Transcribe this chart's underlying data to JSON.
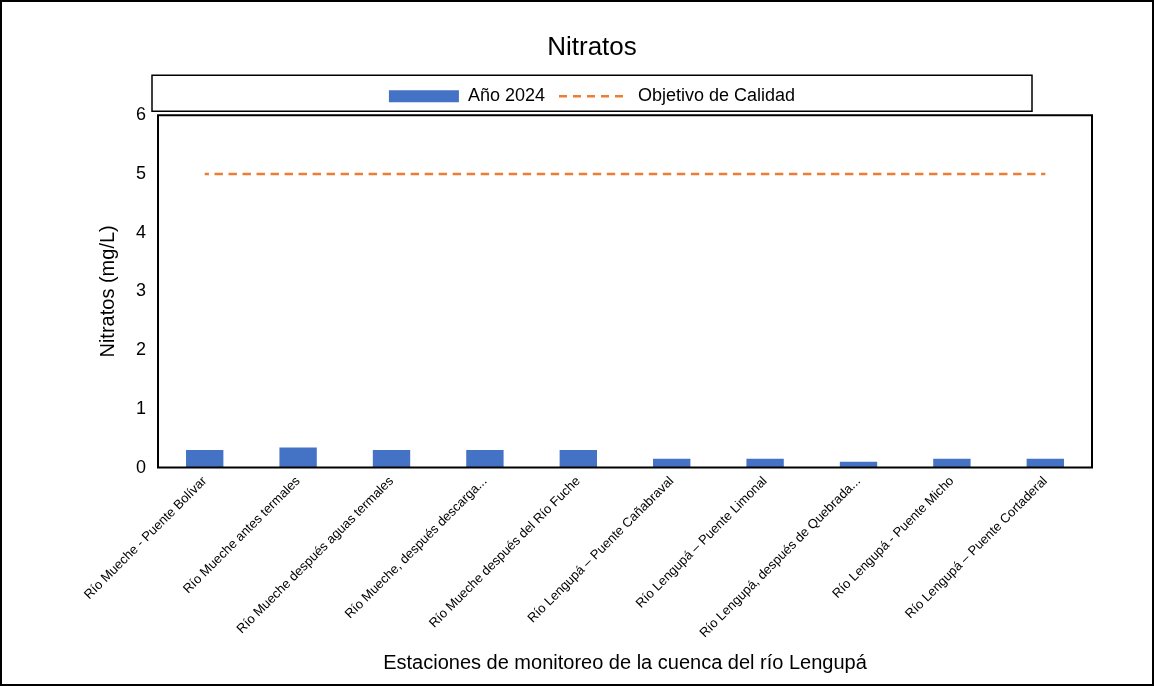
{
  "chart_data": {
    "type": "bar",
    "title": "Nitratos",
    "xlabel": "Estaciones de monitoreo de la cuenca del río Lengupá",
    "ylabel": "Nitratos (mg/L)",
    "categories": [
      "Río Mueche - Puente Bolívar",
      "Río Mueche antes termales",
      "Río Mueche después aguas termales",
      "Río Mueche, después descarga...",
      "Río Mueche después del Río Fuche",
      "Río Lengupá – Puente Cañabraval",
      "Río Lengupá – Puente Limonal",
      "Río Lengupá, después de Quebrada...",
      "Río Lengupá - Puente Micho",
      "Río Lengupá – Puente Cortaderal"
    ],
    "series": [
      {
        "name": "Año 2024",
        "color": "#4472c4",
        "values": [
          0.3,
          0.34,
          0.3,
          0.3,
          0.3,
          0.15,
          0.15,
          0.1,
          0.15,
          0.15
        ]
      },
      {
        "name": "Objetivo de Calidad",
        "type": "line",
        "color": "#ed7d31",
        "line_style": "dashed",
        "marker": "none",
        "values": [
          5,
          5,
          5,
          5,
          5,
          5,
          5,
          5,
          5,
          5
        ]
      }
    ],
    "ylim": [
      0,
      6
    ],
    "yticks": [
      0,
      1,
      2,
      3,
      4,
      5,
      6
    ],
    "grid": false,
    "legend": "top"
  }
}
